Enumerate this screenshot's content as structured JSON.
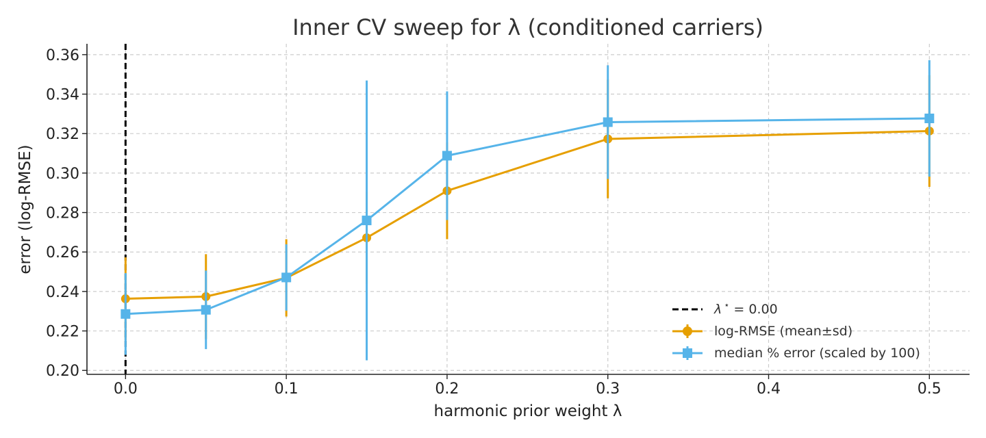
{
  "chart_data": {
    "type": "line",
    "title": "Inner CV sweep for λ (conditioned carriers)",
    "xlabel": "harmonic prior weight λ",
    "ylabel": "error (log-RMSE)",
    "xlim": [
      -0.024,
      0.525
    ],
    "ylim": [
      0.198,
      0.3655
    ],
    "x_ticks": [
      0.0,
      0.1,
      0.2,
      0.3,
      0.4,
      0.5
    ],
    "x_tick_labels": [
      "0.0",
      "0.1",
      "0.2",
      "0.3",
      "0.4",
      "0.5"
    ],
    "y_ticks": [
      0.2,
      0.22,
      0.24,
      0.26,
      0.28,
      0.3,
      0.32,
      0.34,
      0.36
    ],
    "y_tick_labels": [
      "0.20",
      "0.22",
      "0.24",
      "0.26",
      "0.28",
      "0.30",
      "0.32",
      "0.34",
      "0.36"
    ],
    "grid": true,
    "legend_position": "lower-right",
    "vline": {
      "x": 0.0,
      "label_prefix": "λ",
      "label_super": "⋆",
      "label_suffix": " = 0.00",
      "color": "#000000",
      "style": "dashed"
    },
    "series": [
      {
        "name": "log-RMSE (mean±sd)",
        "color": "#E69F00",
        "marker": "circle",
        "x": [
          0.0,
          0.05,
          0.1,
          0.15,
          0.2,
          0.3,
          0.5
        ],
        "y": [
          0.2363,
          0.2374,
          0.2469,
          0.2672,
          0.291,
          0.3173,
          0.3213
        ],
        "yerr": [
          0.021,
          0.0215,
          0.0196,
          0.0234,
          0.0245,
          0.0301,
          0.0283
        ]
      },
      {
        "name": "median % error (scaled by 100)",
        "color": "#56B4E9",
        "marker": "square",
        "x": [
          0.0,
          0.05,
          0.1,
          0.15,
          0.2,
          0.3,
          0.5
        ],
        "y": [
          0.2286,
          0.2307,
          0.2471,
          0.276,
          0.3088,
          0.3258,
          0.3277
        ],
        "yerr": [
          0.0207,
          0.0199,
          0.0168,
          0.0709,
          0.0326,
          0.0288,
          0.0295
        ]
      }
    ]
  }
}
